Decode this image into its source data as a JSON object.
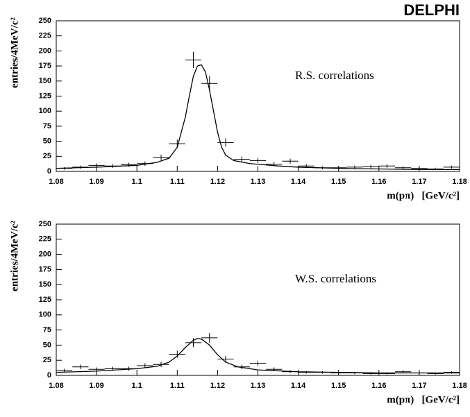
{
  "title": "DELPHI",
  "chart_data": [
    {
      "type": "errorbar",
      "annotation": "R.S. correlations",
      "xlabel": "m(pπ)   [GeV/c²]",
      "ylabel": "entries/4MeV/c²",
      "xlim": [
        1.08,
        1.18
      ],
      "xticks": [
        1.08,
        1.09,
        1.1,
        1.11,
        1.12,
        1.13,
        1.14,
        1.15,
        1.16,
        1.17,
        1.18
      ],
      "ylim": [
        0,
        250
      ],
      "yticks": [
        0,
        25,
        50,
        75,
        100,
        125,
        150,
        175,
        200,
        225,
        250
      ],
      "color": "#000000",
      "x": [
        1.082,
        1.086,
        1.09,
        1.094,
        1.098,
        1.102,
        1.106,
        1.11,
        1.114,
        1.118,
        1.122,
        1.126,
        1.13,
        1.134,
        1.138,
        1.142,
        1.146,
        1.15,
        1.154,
        1.158,
        1.162,
        1.166,
        1.17,
        1.174,
        1.178
      ],
      "values": [
        5,
        7,
        10,
        9,
        11,
        13,
        23,
        46,
        185,
        146,
        48,
        20,
        18,
        12,
        17,
        9,
        6,
        6,
        7,
        8,
        9,
        6,
        5,
        4,
        7
      ],
      "errors": [
        2.2,
        2.6,
        3.2,
        3,
        3.3,
        3.6,
        4.8,
        6.8,
        13.6,
        12.1,
        6.9,
        4.5,
        4.2,
        3.5,
        4.1,
        3,
        2.4,
        2.4,
        2.6,
        2.8,
        3,
        2.4,
        2.2,
        2,
        2.6
      ],
      "fit": {
        "x": [
          1.08,
          1.09,
          1.1,
          1.105,
          1.108,
          1.11,
          1.112,
          1.113,
          1.114,
          1.115,
          1.116,
          1.117,
          1.118,
          1.119,
          1.12,
          1.121,
          1.122,
          1.124,
          1.128,
          1.135,
          1.14,
          1.15,
          1.16,
          1.17,
          1.18
        ],
        "values": [
          5,
          7,
          10,
          15,
          22,
          40,
          90,
          125,
          158,
          175,
          177,
          165,
          135,
          100,
          65,
          40,
          27,
          18,
          13,
          9,
          7,
          5,
          4,
          3,
          3
        ]
      }
    },
    {
      "type": "errorbar",
      "annotation": "W.S. correlations",
      "xlabel": "m(pπ)   [GeV/c²]",
      "ylabel": "entries/4MeV/c²",
      "xlim": [
        1.08,
        1.18
      ],
      "xticks": [
        1.08,
        1.09,
        1.1,
        1.11,
        1.12,
        1.13,
        1.14,
        1.15,
        1.16,
        1.17,
        1.18
      ],
      "ylim": [
        0,
        250
      ],
      "yticks": [
        0,
        25,
        50,
        75,
        100,
        125,
        150,
        175,
        200,
        225,
        250
      ],
      "color": "#000000",
      "x": [
        1.082,
        1.086,
        1.09,
        1.094,
        1.098,
        1.102,
        1.106,
        1.11,
        1.114,
        1.118,
        1.122,
        1.126,
        1.13,
        1.134,
        1.138,
        1.142,
        1.146,
        1.15,
        1.154,
        1.158,
        1.162,
        1.166,
        1.17,
        1.174,
        1.178
      ],
      "values": [
        8,
        14,
        10,
        11,
        11,
        16,
        18,
        35,
        54,
        62,
        27,
        14,
        20,
        10,
        6,
        5,
        5,
        4,
        4,
        3,
        3,
        6,
        4,
        3,
        5
      ],
      "errors": [
        2.8,
        3.7,
        3.2,
        3.3,
        3.3,
        4,
        4.2,
        5.9,
        7.3,
        7.9,
        5.2,
        3.7,
        4.5,
        3.2,
        2.4,
        2.2,
        2.2,
        2,
        2,
        1.7,
        1.7,
        2.4,
        2,
        1.7,
        2.2
      ],
      "fit": {
        "x": [
          1.08,
          1.09,
          1.1,
          1.105,
          1.108,
          1.11,
          1.112,
          1.114,
          1.115,
          1.116,
          1.118,
          1.12,
          1.122,
          1.125,
          1.13,
          1.14,
          1.15,
          1.16,
          1.17,
          1.18
        ],
        "values": [
          5,
          7,
          11,
          15,
          22,
          32,
          46,
          58,
          61,
          60,
          50,
          34,
          22,
          14,
          9,
          6,
          5,
          4,
          4,
          4
        ]
      }
    }
  ]
}
